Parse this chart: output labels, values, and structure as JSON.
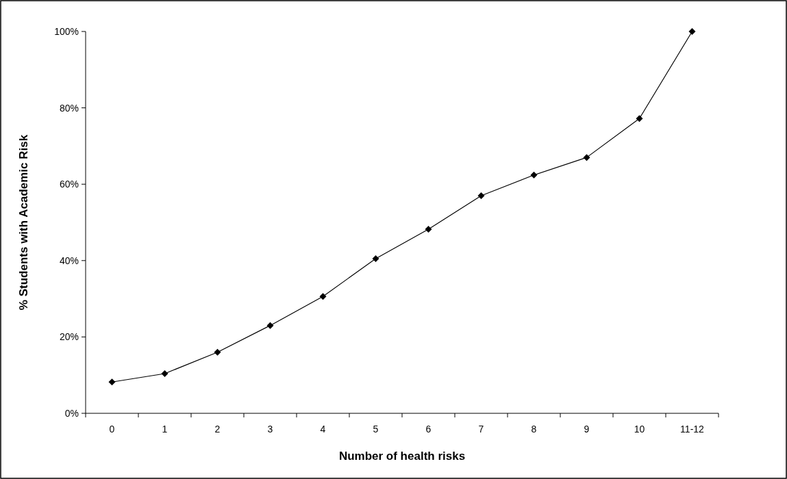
{
  "chart_data": {
    "type": "line",
    "xlabel": "Number of health risks",
    "ylabel": "% Students with Academic Risk",
    "categories": [
      "0",
      "1",
      "2",
      "3",
      "4",
      "5",
      "6",
      "7",
      "8",
      "9",
      "10",
      "11-12"
    ],
    "series": [
      {
        "color": "#000000",
        "values": [
          8.2,
          10.4,
          16,
          23,
          30.6,
          40.5,
          48.2,
          57,
          62.4,
          67,
          77.2,
          100
        ]
      }
    ],
    "ylim": [
      0,
      100
    ],
    "yticks": [
      {
        "value": 0,
        "label": "0%"
      },
      {
        "value": 20,
        "label": "20%"
      },
      {
        "value": 40,
        "label": "40%"
      },
      {
        "value": 60,
        "label": "60%"
      },
      {
        "value": 80,
        "label": "80%"
      },
      {
        "value": 100,
        "label": "100%"
      }
    ],
    "grid": false,
    "marker": "diamond",
    "line_style": "solid"
  }
}
